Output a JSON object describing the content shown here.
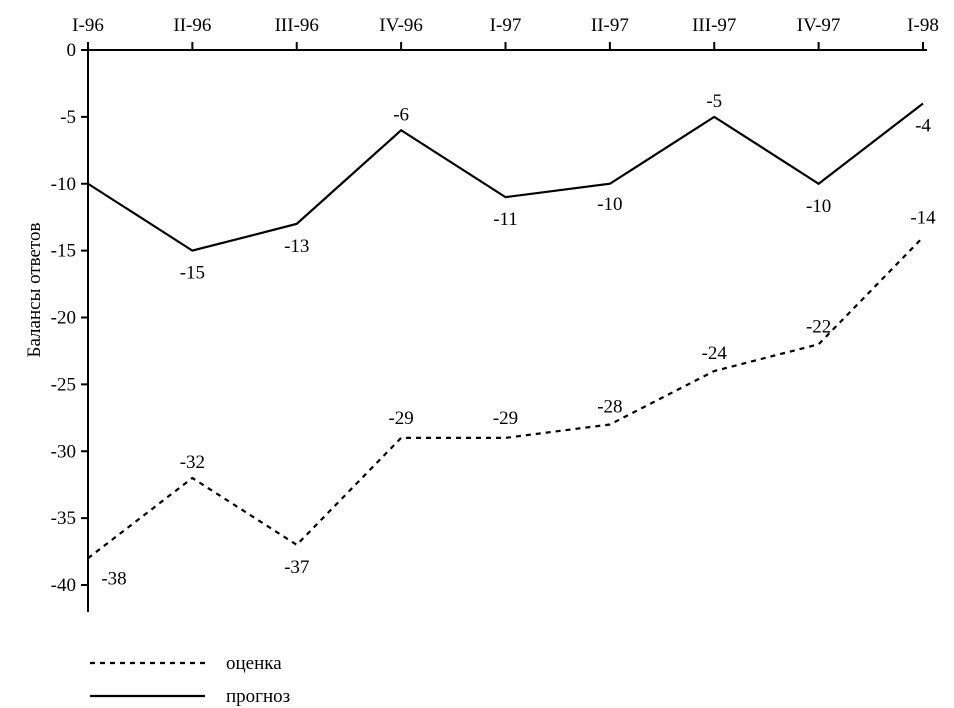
{
  "chart_data": {
    "type": "line",
    "title": "",
    "xlabel": "",
    "ylabel": "Балансы ответов",
    "categories": [
      "I-96",
      "II-96",
      "III-96",
      "IV-96",
      "I-97",
      "II-97",
      "III-97",
      "IV-97",
      "I-98"
    ],
    "ylim": [
      -40,
      0
    ],
    "ytick_step": 5,
    "y_ticks": [
      "0",
      "-5",
      "-10",
      "-15",
      "-20",
      "-25",
      "-30",
      "-35",
      "-40"
    ],
    "x_axis_position": "top",
    "grid": false,
    "legend_position": "bottom-left",
    "series": [
      {
        "name": "прогноз",
        "style": "solid",
        "color": "#000000",
        "values": [
          -10,
          -15,
          -13,
          -6,
          -11,
          -10,
          -5,
          -10,
          -4
        ],
        "labels": [
          "",
          "-15",
          "-13",
          "-6",
          "-11",
          "-10",
          "-5",
          "-10",
          "-4"
        ]
      },
      {
        "name": "оценка",
        "style": "dashed",
        "color": "#000000",
        "values": [
          -38,
          -32,
          -37,
          -29,
          -29,
          -28,
          -24,
          -22,
          -14
        ],
        "labels": [
          "-38",
          "-32",
          "-37",
          "-29",
          "-29",
          "-28",
          "-24",
          "-22",
          "-14"
        ]
      }
    ],
    "legend": [
      {
        "name": "оценка",
        "style": "dashed"
      },
      {
        "name": "прогноз",
        "style": "solid"
      }
    ]
  }
}
